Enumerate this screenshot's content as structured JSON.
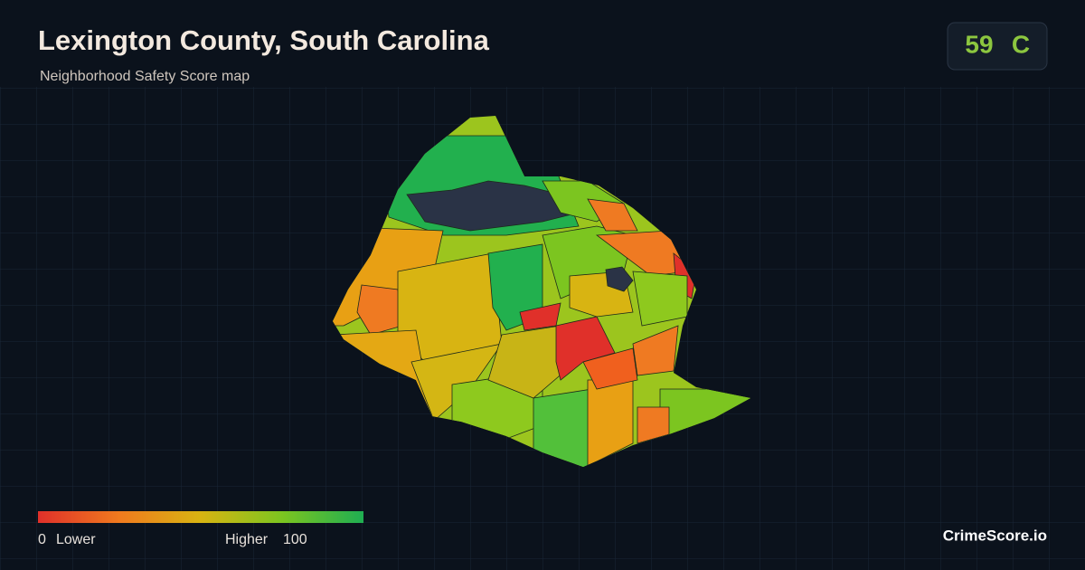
{
  "header": {
    "title": "Lexington County, South Carolina",
    "subtitle": "Neighborhood Safety Score map"
  },
  "score": {
    "value": 59,
    "grade": "C"
  },
  "legend": {
    "min": 0,
    "min_label": "Lower",
    "max_label": "Higher",
    "max": 100
  },
  "brand": "CrimeScore.io"
}
